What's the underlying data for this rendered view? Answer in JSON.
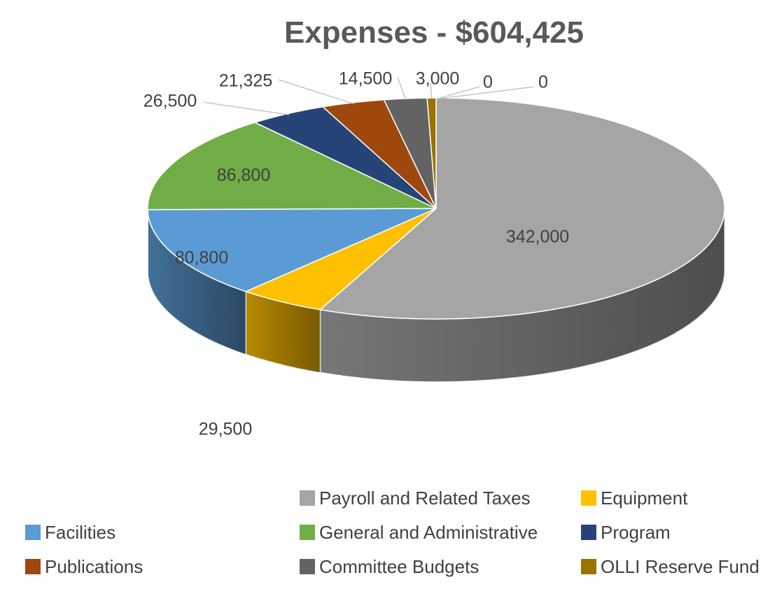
{
  "chart_data": {
    "type": "pie",
    "title": "Expenses - $604,425",
    "style": "3d",
    "legend_position": "bottom",
    "series": [
      {
        "label": "Payroll and Related Taxes",
        "value": 342000,
        "value_label": "342,000",
        "color": "#A5A5A5"
      },
      {
        "label": "Equipment",
        "value": 29500,
        "value_label": "29,500",
        "color": "#FFC000"
      },
      {
        "label": "Facilities",
        "value": 80800,
        "value_label": "80,800",
        "color": "#5B9BD5"
      },
      {
        "label": "General and Administrative",
        "value": 86800,
        "value_label": "86,800",
        "color": "#70AD47"
      },
      {
        "label": "Program",
        "value": 26500,
        "value_label": "26,500",
        "color": "#264478"
      },
      {
        "label": "Publications",
        "value": 21325,
        "value_label": "21,325",
        "color": "#9E480E"
      },
      {
        "label": "Committee Budgets",
        "value": 14500,
        "value_label": "14,500",
        "color": "#636363"
      },
      {
        "label": "OLLI Reserve Fund",
        "value": 3000,
        "value_label": "3,000",
        "color": "#997300"
      },
      {
        "label": "",
        "value": 0,
        "value_label": "0",
        "color": "#997300"
      },
      {
        "label": "",
        "value": 0,
        "value_label": "0",
        "color": "#997300"
      }
    ]
  }
}
